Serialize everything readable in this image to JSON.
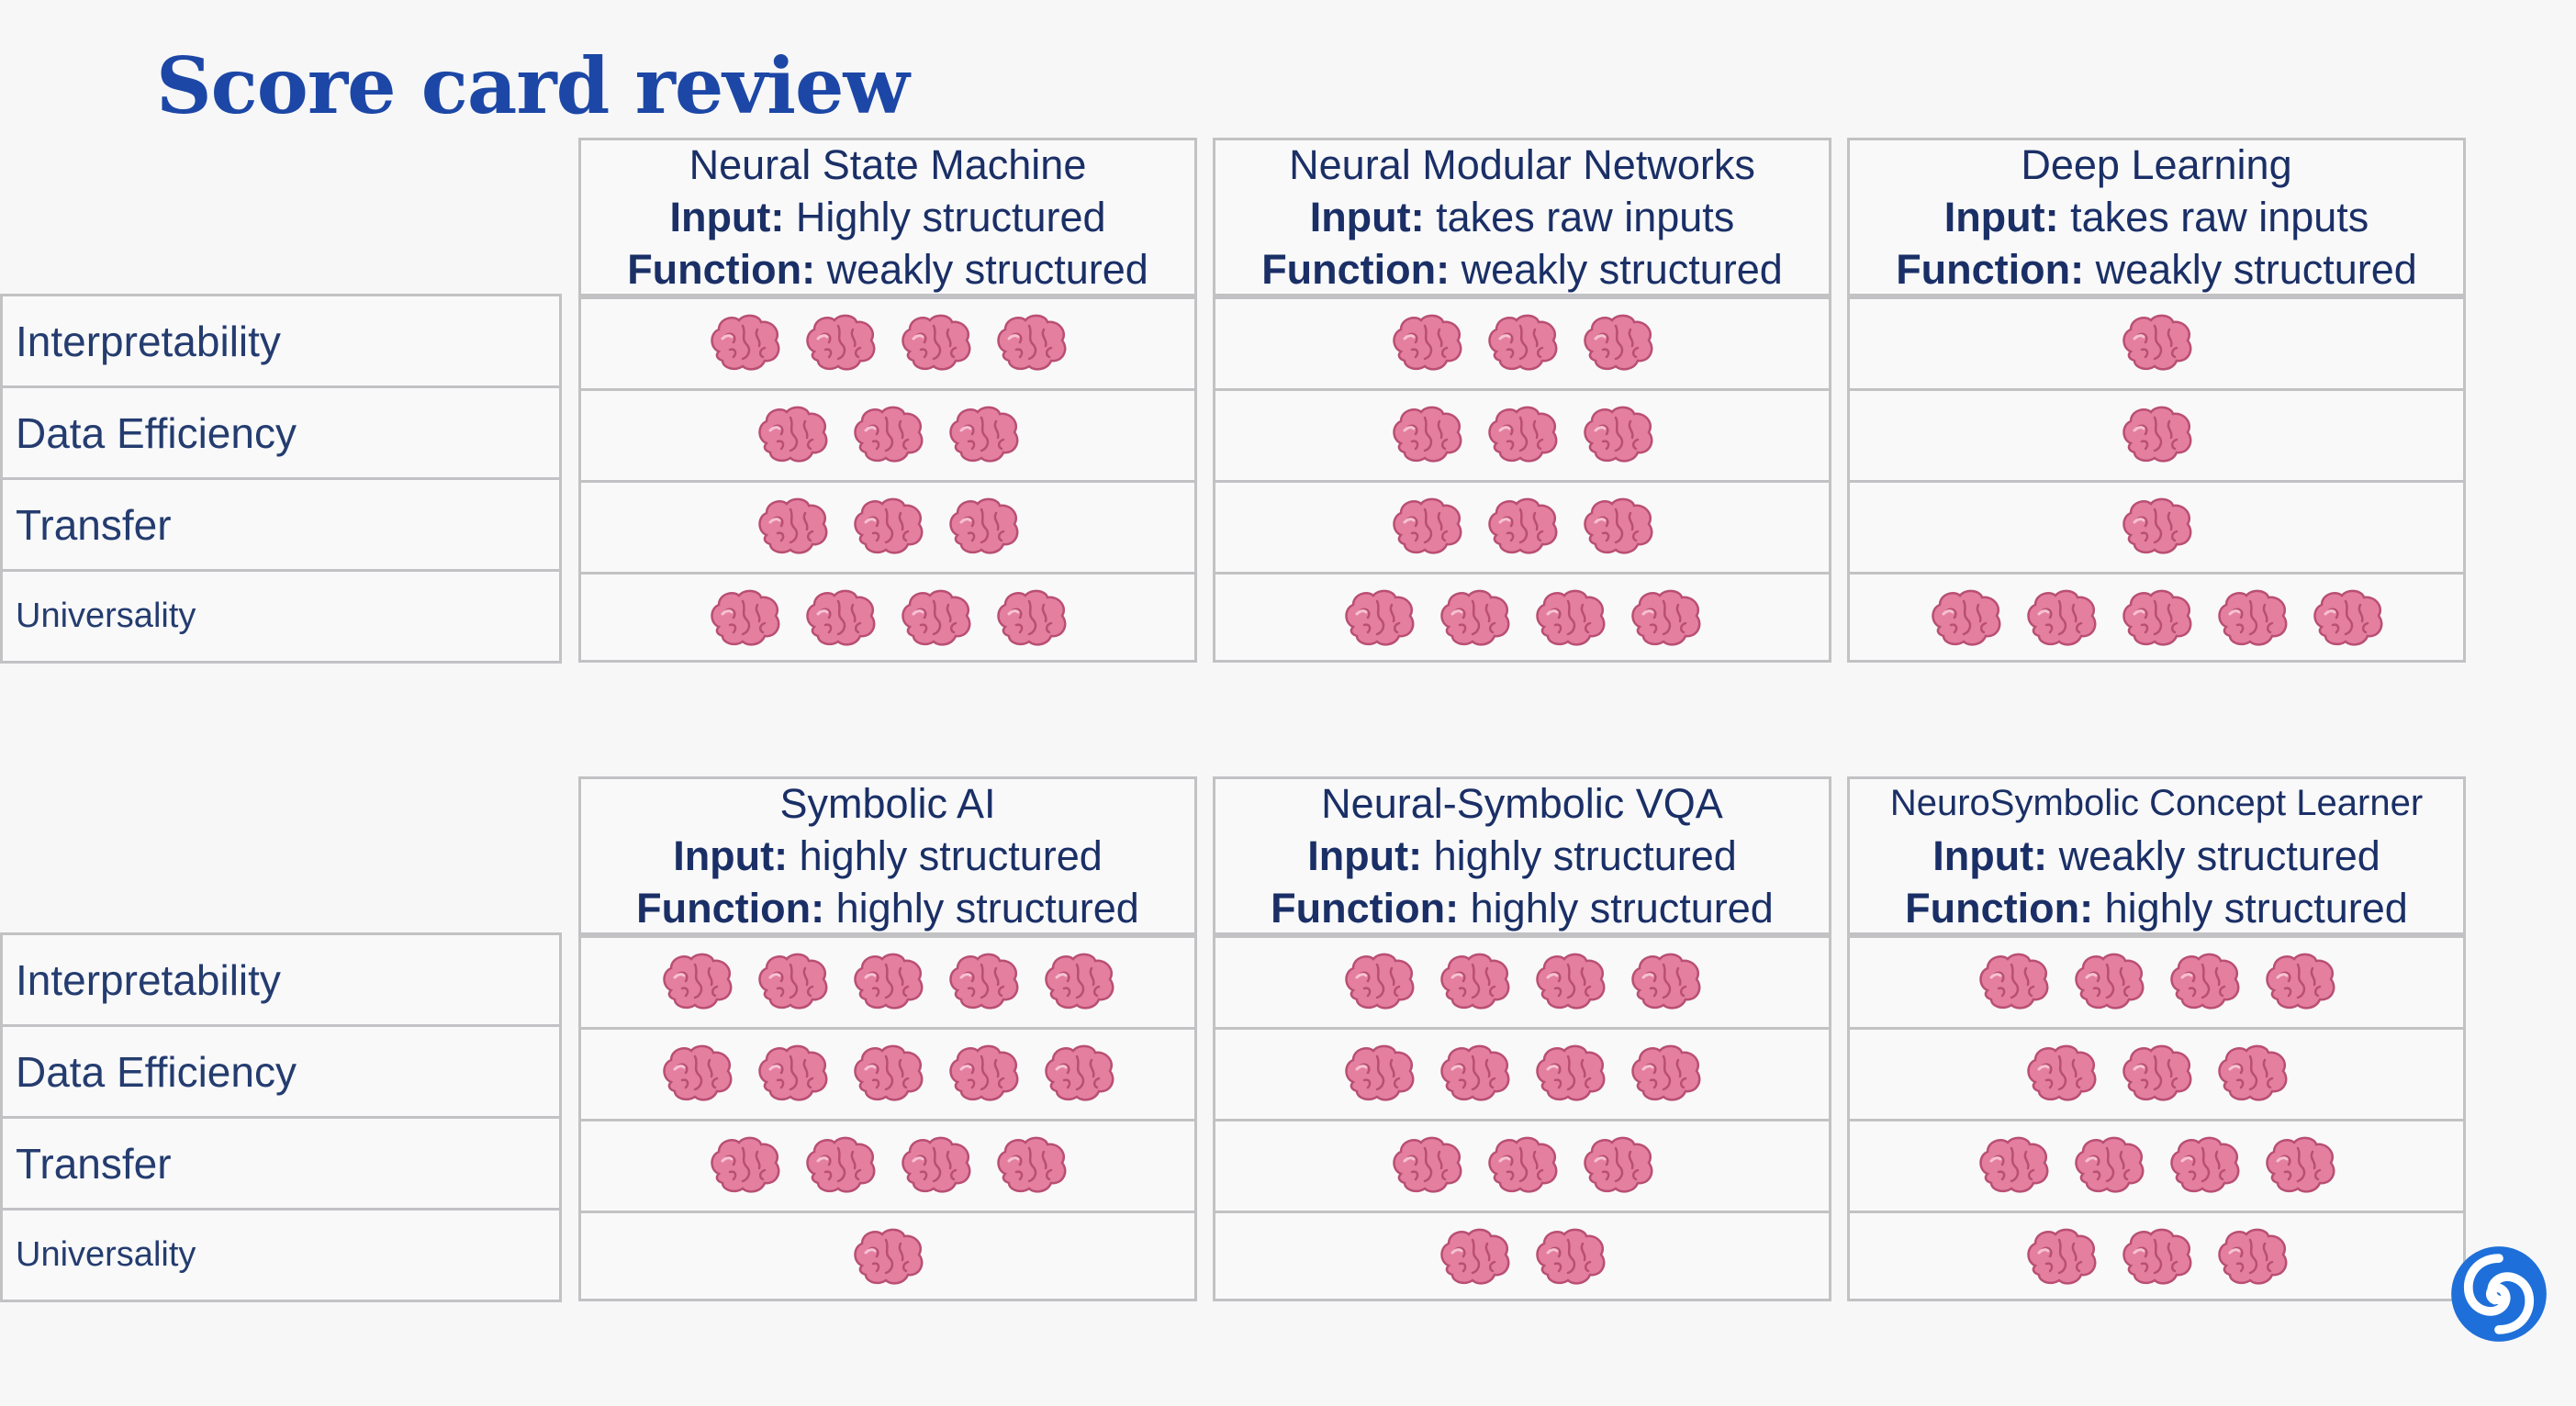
{
  "title": "Score card review",
  "row_labels": [
    "Interpretability",
    "Data Efficiency",
    "Transfer",
    "Universality"
  ],
  "icon": "brain-icon",
  "top_columns": [
    {
      "name": "Neural State Machine",
      "input_label": "Input:",
      "input": "Highly structured",
      "function_label": "Function:",
      "function": "weakly structured",
      "scores": [
        4,
        3,
        3,
        4
      ]
    },
    {
      "name": "Neural Modular Networks",
      "input_label": "Input:",
      "input": "takes raw inputs",
      "function_label": "Function:",
      "function": "weakly structured",
      "scores": [
        3,
        3,
        3,
        4
      ]
    },
    {
      "name": "Deep Learning",
      "input_label": "Input:",
      "input": "takes raw inputs",
      "function_label": "Function:",
      "function": "weakly structured",
      "scores": [
        1,
        1,
        1,
        5
      ]
    }
  ],
  "bottom_columns": [
    {
      "name": "Symbolic AI",
      "input_label": "Input:",
      "input": "highly structured",
      "function_label": "Function:",
      "function": "highly structured",
      "scores": [
        5,
        5,
        4,
        1
      ]
    },
    {
      "name": "Neural-Symbolic VQA",
      "input_label": "Input:",
      "input": "highly structured",
      "function_label": "Function:",
      "function": "highly structured",
      "scores": [
        4,
        4,
        3,
        2
      ]
    },
    {
      "name": "NeuroSymbolic Concept Learner",
      "input_label": "Input:",
      "input": "weakly structured",
      "function_label": "Function:",
      "function": "highly structured",
      "scores": [
        4,
        3,
        4,
        3
      ]
    }
  ],
  "colors": {
    "title": "#1c47a6",
    "brain": "#e47fa0",
    "logo": "#1e6fd9"
  }
}
